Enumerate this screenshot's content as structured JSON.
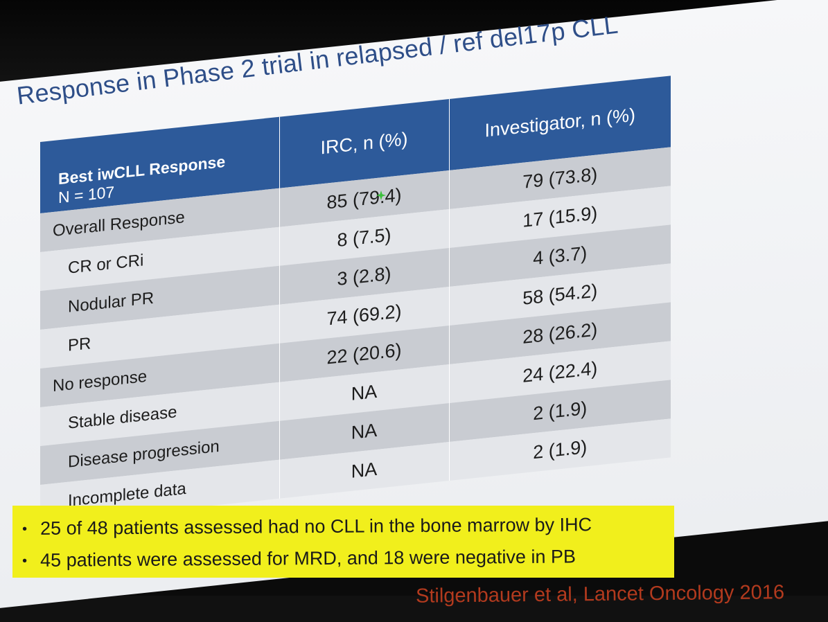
{
  "slide": {
    "title": "Response in Phase 2 trial in relapsed / ref del17p CLL",
    "table": {
      "header": {
        "col0_line1": "Best iwCLL Response",
        "col0_line2": "N = 107",
        "col1": "IRC, n (%)",
        "col2": "Investigator, n (%)"
      },
      "rows": [
        {
          "label": "Overall Response",
          "irc": "85 (79.4)",
          "investigator": "79 (73.8)",
          "indent": false
        },
        {
          "label": "CR or CRi",
          "irc": "8 (7.5)",
          "investigator": "17 (15.9)",
          "indent": true
        },
        {
          "label": "Nodular PR",
          "irc": "3 (2.8)",
          "investigator": "4 (3.7)",
          "indent": true
        },
        {
          "label": "PR",
          "irc": "74 (69.2)",
          "investigator": "58 (54.2)",
          "indent": true
        },
        {
          "label": "No response",
          "irc": "22 (20.6)",
          "investigator": "28 (26.2)",
          "indent": false
        },
        {
          "label": "Stable disease",
          "irc": "NA",
          "investigator": "24 (22.4)",
          "indent": true
        },
        {
          "label": "Disease progression",
          "irc": "NA",
          "investigator": "2 (1.9)",
          "indent": true
        },
        {
          "label": "Incomplete data",
          "irc": "NA",
          "investigator": "2 (1.9)",
          "indent": true
        }
      ]
    },
    "bullets": [
      "25 of 48 patients assessed had no CLL in the bone marrow by IHC",
      "45 patients were assessed for MRD, and 18 were negative in PB"
    ],
    "citation": "Stilgenbauer et al, Lancet Oncology 2016"
  },
  "colors": {
    "header_blue": "#2d5a9a",
    "title_blue": "#2e4e88",
    "highlight_yellow": "#f1ef1c",
    "citation_red": "#b23a1e",
    "row_dark": "#c9ccd2",
    "row_light": "#e4e6ea"
  }
}
